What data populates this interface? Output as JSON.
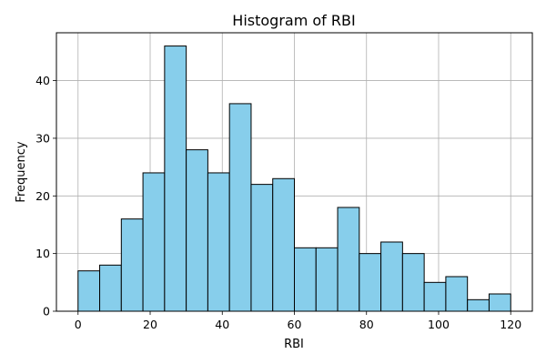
{
  "chart_data": {
    "type": "bar",
    "title": "Histogram of RBI",
    "xlabel": "RBI",
    "ylabel": "Frequency",
    "bin_edges": [
      0,
      6,
      12,
      18,
      24,
      30,
      36,
      42,
      48,
      54,
      60,
      66,
      72,
      78,
      84,
      90,
      96,
      102,
      108,
      114,
      120
    ],
    "values": [
      7,
      8,
      16,
      24,
      46,
      28,
      24,
      36,
      22,
      23,
      11,
      11,
      18,
      10,
      12,
      10,
      5,
      6,
      2,
      3
    ],
    "xlim": [
      -6,
      126
    ],
    "ylim": [
      0,
      48.3
    ],
    "xticks": [
      0,
      20,
      40,
      60,
      80,
      100,
      120
    ],
    "yticks": [
      0,
      10,
      20,
      30,
      40
    ],
    "grid": true,
    "bar_color": "#87ceeb",
    "edge_color": "#000000"
  }
}
